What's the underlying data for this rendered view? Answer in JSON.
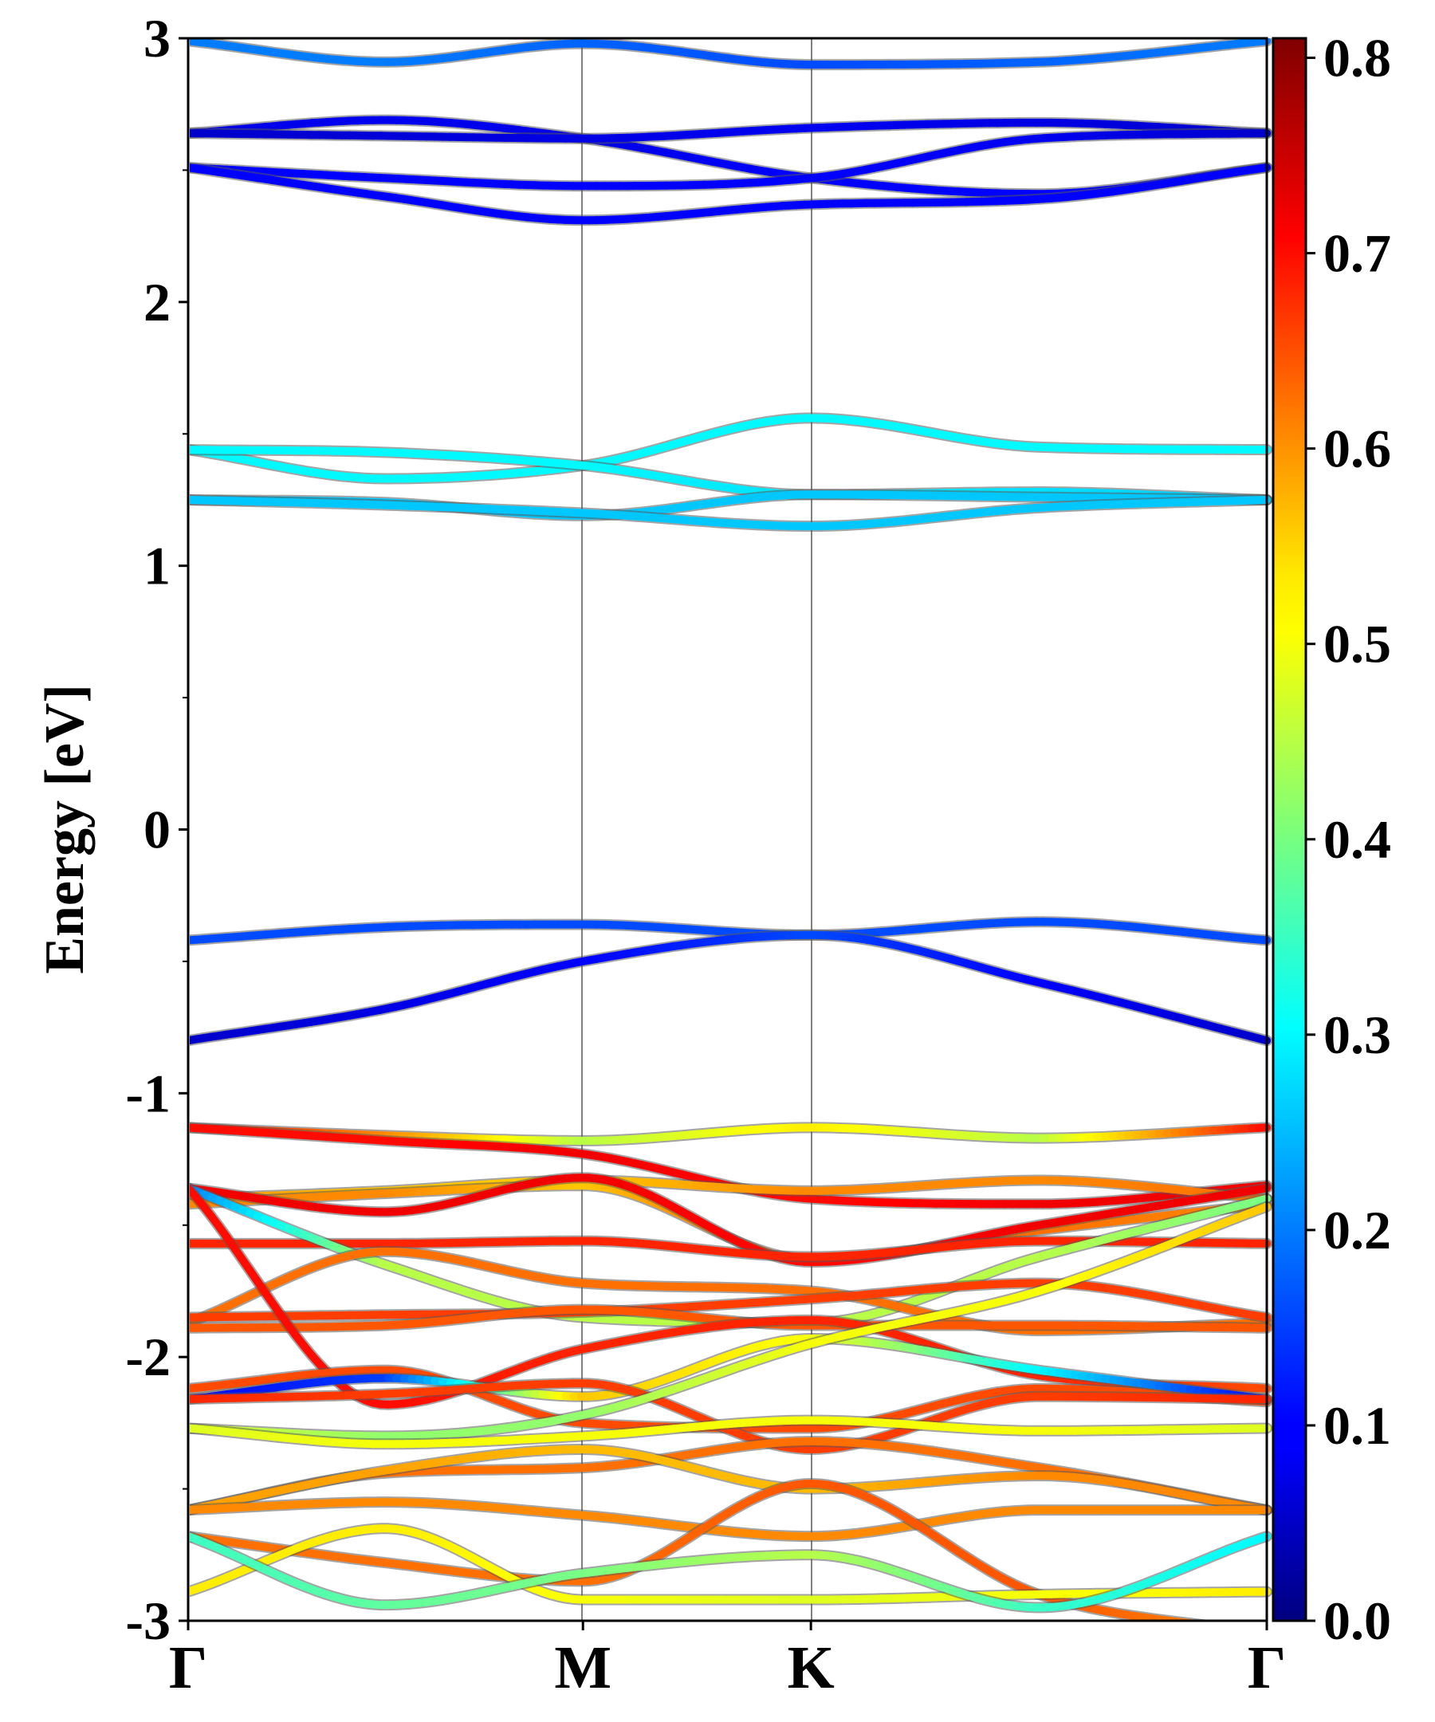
{
  "chart_data": {
    "type": "line",
    "title": "",
    "xlabel": "",
    "ylabel": "Energy [eV]",
    "ylim": [
      -3,
      3
    ],
    "yticks": [
      "3",
      "2",
      "1",
      "0",
      "-1",
      "-2",
      "-3"
    ],
    "kpath_labels": [
      "Γ",
      "M",
      "K",
      "Γ"
    ],
    "kpath_positions": [
      0,
      1.732,
      2.732,
      4.732
    ],
    "colorbar": {
      "colormap": "jet",
      "range": [
        0.0,
        0.81
      ],
      "ticks": [
        "0.0",
        "0.1",
        "0.2",
        "0.3",
        "0.4",
        "0.5",
        "0.6",
        "0.7",
        "0.8"
      ]
    },
    "grid": false,
    "bands": [
      {
        "energies": [
          2.99,
          2.91,
          2.98,
          2.9,
          2.91,
          2.99
        ],
        "weights": [
          0.2,
          0.2,
          0.18,
          0.16,
          0.18,
          0.2
        ]
      },
      {
        "energies": [
          2.64,
          2.69,
          2.62,
          2.47,
          2.41,
          2.51
        ],
        "weights": [
          0.08,
          0.09,
          0.08,
          0.1,
          0.1,
          0.1
        ]
      },
      {
        "energies": [
          2.64,
          2.63,
          2.62,
          2.66,
          2.68,
          2.64
        ],
        "weights": [
          0.06,
          0.07,
          0.08,
          0.09,
          0.08,
          0.06
        ]
      },
      {
        "energies": [
          2.51,
          2.47,
          2.44,
          2.47,
          2.62,
          2.64
        ],
        "weights": [
          0.1,
          0.1,
          0.1,
          0.1,
          0.09,
          0.06
        ]
      },
      {
        "energies": [
          2.51,
          2.4,
          2.31,
          2.37,
          2.39,
          2.51
        ],
        "weights": [
          0.1,
          0.1,
          0.1,
          0.1,
          0.1,
          0.1
        ]
      },
      {
        "energies": [
          1.44,
          1.33,
          1.38,
          1.56,
          1.45,
          1.44
        ],
        "weights": [
          0.3,
          0.3,
          0.3,
          0.3,
          0.3,
          0.3
        ]
      },
      {
        "energies": [
          1.44,
          1.43,
          1.38,
          1.27,
          1.28,
          1.25
        ],
        "weights": [
          0.3,
          0.3,
          0.3,
          0.28,
          0.28,
          0.26
        ]
      },
      {
        "energies": [
          1.25,
          1.24,
          1.19,
          1.27,
          1.26,
          1.25
        ],
        "weights": [
          0.26,
          0.26,
          0.26,
          0.26,
          0.26,
          0.26
        ]
      },
      {
        "energies": [
          1.25,
          1.23,
          1.2,
          1.15,
          1.22,
          1.25
        ],
        "weights": [
          0.26,
          0.26,
          0.26,
          0.26,
          0.26,
          0.26
        ]
      },
      {
        "energies": [
          -0.42,
          -0.37,
          -0.36,
          -0.4,
          -0.35,
          -0.42
        ],
        "weights": [
          0.16,
          0.16,
          0.16,
          0.16,
          0.16,
          0.16
        ]
      },
      {
        "energies": [
          -0.8,
          -0.68,
          -0.5,
          -0.4,
          -0.58,
          -0.8
        ],
        "weights": [
          0.06,
          0.08,
          0.1,
          0.16,
          0.1,
          0.06
        ]
      },
      {
        "energies": [
          -1.13,
          -1.16,
          -1.18,
          -1.13,
          -1.17,
          -1.13
        ],
        "weights": [
          0.7,
          0.6,
          0.45,
          0.52,
          0.45,
          0.7
        ]
      },
      {
        "energies": [
          -1.13,
          -1.18,
          -1.23,
          -1.4,
          -1.42,
          -1.35
        ],
        "weights": [
          0.7,
          0.7,
          0.72,
          0.7,
          0.72,
          0.72
        ]
      },
      {
        "energies": [
          -1.4,
          -1.37,
          -1.33,
          -1.37,
          -1.33,
          -1.4
        ],
        "weights": [
          0.6,
          0.55,
          0.55,
          0.6,
          0.6,
          0.62
        ]
      },
      {
        "energies": [
          -1.42,
          -1.38,
          -1.35,
          -1.63,
          -1.52,
          -1.42
        ],
        "weights": [
          0.6,
          0.6,
          0.55,
          0.65,
          0.62,
          0.6
        ]
      },
      {
        "energies": [
          -1.36,
          -1.45,
          -1.32,
          -1.64,
          -1.5,
          -1.36
        ],
        "weights": [
          0.72,
          0.72,
          0.72,
          0.7,
          0.72,
          0.72
        ]
      },
      {
        "energies": [
          -1.57,
          -1.57,
          -1.56,
          -1.62,
          -1.56,
          -1.57
        ],
        "weights": [
          0.68,
          0.68,
          0.68,
          0.68,
          0.68,
          0.68
        ]
      },
      {
        "energies": [
          -1.36,
          -1.65,
          -1.85,
          -1.87,
          -1.62,
          -1.4
        ],
        "weights": [
          0.2,
          0.45,
          0.45,
          0.45,
          0.45,
          0.4
        ]
      },
      {
        "energies": [
          -1.87,
          -1.6,
          -1.72,
          -1.75,
          -1.9,
          -1.87
        ],
        "weights": [
          0.62,
          0.62,
          0.62,
          0.62,
          0.62,
          0.62
        ]
      },
      {
        "energies": [
          -1.85,
          -1.84,
          -1.83,
          -1.78,
          -1.72,
          -1.85
        ],
        "weights": [
          0.66,
          0.66,
          0.66,
          0.66,
          0.66,
          0.66
        ]
      },
      {
        "energies": [
          -1.89,
          -1.88,
          -1.82,
          -1.88,
          -1.88,
          -1.89
        ],
        "weights": [
          0.64,
          0.64,
          0.64,
          0.64,
          0.64,
          0.64
        ]
      },
      {
        "energies": [
          -1.36,
          -2.18,
          -1.97,
          -1.86,
          -2.07,
          -2.12
        ],
        "weights": [
          0.7,
          0.7,
          0.68,
          0.68,
          0.68,
          0.65
        ]
      },
      {
        "energies": [
          -2.12,
          -2.05,
          -2.25,
          -2.27,
          -2.12,
          -2.17
        ],
        "weights": [
          0.65,
          0.65,
          0.65,
          0.65,
          0.65,
          0.65
        ]
      },
      {
        "energies": [
          -2.16,
          -2.08,
          -2.15,
          -1.93,
          -2.05,
          -2.16
        ],
        "weights": [
          0.1,
          0.15,
          0.55,
          0.5,
          0.3,
          0.1
        ]
      },
      {
        "energies": [
          -2.16,
          -2.14,
          -2.1,
          -2.35,
          -2.15,
          -2.16
        ],
        "weights": [
          0.68,
          0.66,
          0.66,
          0.66,
          0.66,
          0.68
        ]
      },
      {
        "energies": [
          -2.27,
          -2.3,
          -2.22,
          -1.95,
          -1.75,
          -1.43
        ],
        "weights": [
          0.48,
          0.42,
          0.42,
          0.5,
          0.5,
          0.55
        ]
      },
      {
        "energies": [
          -2.27,
          -2.33,
          -2.3,
          -2.24,
          -2.28,
          -2.27
        ],
        "weights": [
          0.48,
          0.5,
          0.5,
          0.5,
          0.5,
          0.48
        ]
      },
      {
        "energies": [
          -2.58,
          -2.44,
          -2.42,
          -2.32,
          -2.42,
          -2.58
        ],
        "weights": [
          0.62,
          0.62,
          0.62,
          0.62,
          0.62,
          0.62
        ]
      },
      {
        "energies": [
          -2.58,
          -2.43,
          -2.35,
          -2.5,
          -2.45,
          -2.58
        ],
        "weights": [
          0.58,
          0.58,
          0.56,
          0.56,
          0.6,
          0.6
        ]
      },
      {
        "energies": [
          -2.58,
          -2.55,
          -2.6,
          -2.68,
          -2.58,
          -2.58
        ],
        "weights": [
          0.6,
          0.6,
          0.6,
          0.6,
          0.6,
          0.6
        ]
      },
      {
        "energies": [
          -2.68,
          -2.78,
          -2.85,
          -2.48,
          -2.9,
          -3.05
        ],
        "weights": [
          0.62,
          0.62,
          0.62,
          0.64,
          0.64,
          0.6
        ]
      },
      {
        "energies": [
          -2.89,
          -2.65,
          -2.92,
          -2.92,
          -2.9,
          -2.89
        ],
        "weights": [
          0.52,
          0.52,
          0.5,
          0.48,
          0.5,
          0.52
        ]
      },
      {
        "energies": [
          -2.68,
          -2.94,
          -2.82,
          -2.75,
          -2.95,
          -2.68
        ],
        "weights": [
          0.35,
          0.38,
          0.4,
          0.45,
          0.35,
          0.3
        ]
      }
    ]
  }
}
